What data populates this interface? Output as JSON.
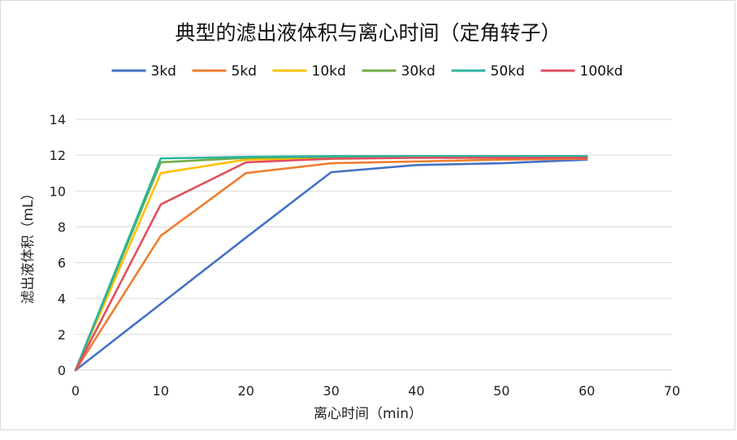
{
  "chart_data": {
    "type": "line",
    "title": "典型的滤出液体积与离心时间（定角转子）",
    "xlabel": "离心时间（min）",
    "ylabel": "滤出液体积（mL）",
    "xlim": [
      0,
      70
    ],
    "ylim": [
      0,
      14
    ],
    "xticks": [
      0,
      10,
      20,
      30,
      40,
      50,
      60,
      70
    ],
    "yticks": [
      0,
      2,
      4,
      6,
      8,
      10,
      12,
      14
    ],
    "grid": "horizontal",
    "legend_position": "top",
    "x": [
      0,
      10,
      20,
      30,
      40,
      50,
      60
    ],
    "series": [
      {
        "name": "3kd",
        "color": "#4472C4",
        "values": [
          0,
          3.7,
          7.4,
          11.05,
          11.45,
          11.55,
          11.75
        ]
      },
      {
        "name": "5kd",
        "color": "#ED7D31",
        "values": [
          0,
          7.5,
          11.0,
          11.55,
          11.65,
          11.75,
          11.8
        ]
      },
      {
        "name": "10kd",
        "color": "#FFC000",
        "values": [
          0,
          11.0,
          11.75,
          11.85,
          11.9,
          11.9,
          11.95
        ]
      },
      {
        "name": "30kd",
        "color": "#70AD47",
        "values": [
          0,
          11.6,
          11.85,
          11.9,
          11.9,
          11.9,
          11.95
        ]
      },
      {
        "name": "50kd",
        "color": "#2BB5A0",
        "values": [
          0,
          11.82,
          11.9,
          11.95,
          11.95,
          11.95,
          11.95
        ]
      },
      {
        "name": "100kd",
        "color": "#E0505E",
        "values": [
          0,
          9.25,
          11.6,
          11.8,
          11.85,
          11.85,
          11.85
        ]
      }
    ]
  }
}
